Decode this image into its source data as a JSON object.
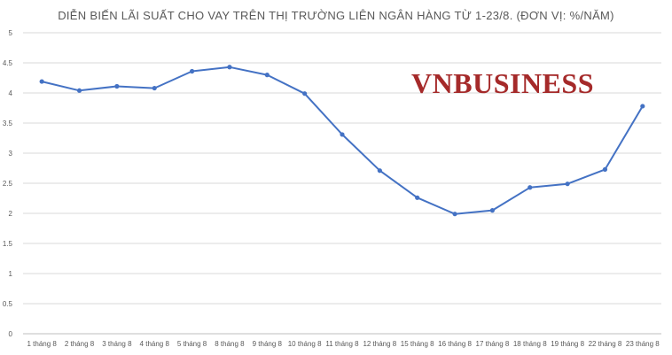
{
  "chart_data": {
    "type": "line",
    "title": "DIỄN BIẾN LÃI SUẤT CHO VAY TRÊN THỊ TRƯỜNG LIÊN NGÂN HÀNG TỪ 1-23/8. (ĐƠN VỊ: %/NĂM)",
    "categories": [
      "1 tháng 8",
      "2 tháng 8",
      "3 tháng 8",
      "4 tháng 8",
      "5 tháng 8",
      "8 tháng 8",
      "9 tháng 8",
      "10 tháng 8",
      "11 tháng 8",
      "12 tháng 8",
      "15 tháng 8",
      "16 tháng 8",
      "17 tháng 8",
      "18 tháng 8",
      "19 tháng 8",
      "22 tháng 8",
      "23 tháng 8"
    ],
    "series": [
      {
        "values": [
          4.19,
          4.04,
          4.11,
          4.08,
          4.36,
          4.43,
          4.3,
          3.99,
          3.31,
          2.71,
          2.26,
          1.99,
          2.05,
          2.43,
          2.49,
          2.73,
          3.78
        ],
        "color": "#4472c4"
      }
    ],
    "ylim": [
      0,
      5
    ],
    "yticks": [
      0,
      0.5,
      1,
      1.5,
      2,
      2.5,
      3,
      3.5,
      4,
      4.5,
      5
    ],
    "ytick_labels": [
      "0",
      "0.5",
      "1",
      "1.5",
      "2",
      "2.5",
      "3",
      "3.5",
      "4",
      "4.5",
      "5"
    ],
    "grid": true,
    "legend": "none",
    "xlabel": "",
    "ylabel": ""
  },
  "watermark": {
    "text": "VNBUSINESS",
    "color": "#a52a2a"
  }
}
